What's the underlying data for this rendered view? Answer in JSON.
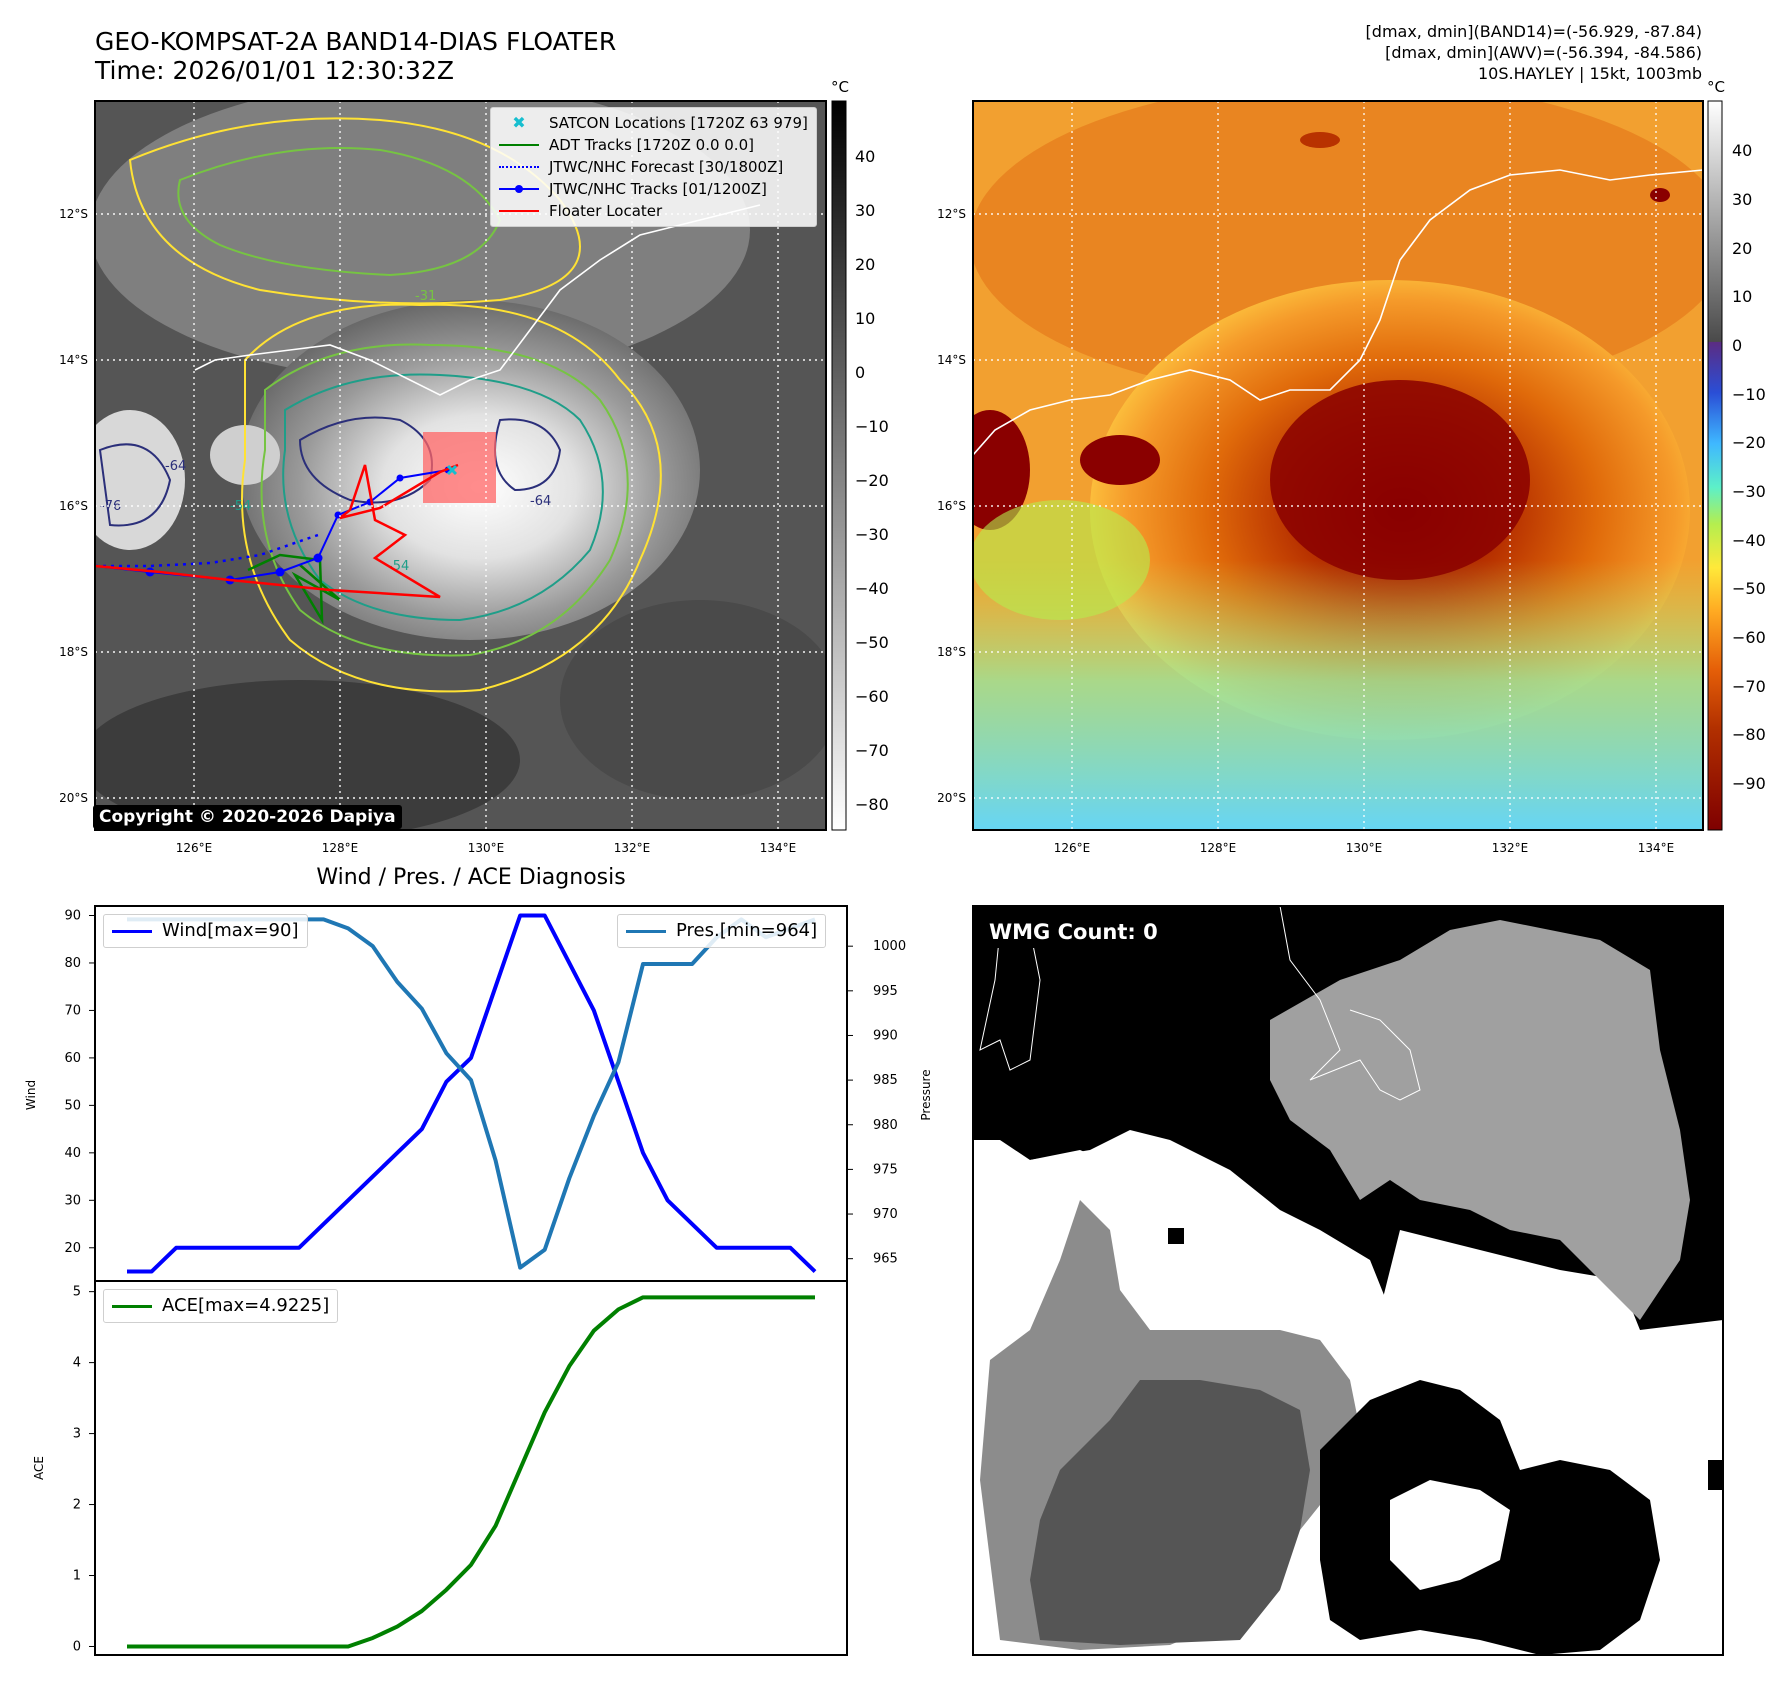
{
  "header": {
    "title_line1": "GEO-KOMPSAT-2A BAND14-DIAS FLOATER",
    "title_line2": "Time: 2026/01/01 12:30:32Z",
    "info_line1": "[dmax, dmin](BAND14)=(-56.929, -87.84)",
    "info_line2": "[dmax, dmin](AWV)=(-56.394, -84.586)",
    "info_line3": "10S.HAYLEY | 15kt, 1003mb"
  },
  "copyright": "Copyright © 2020-2026 Dapiya",
  "map": {
    "lat_labels": [
      "12°S",
      "14°S",
      "16°S",
      "18°S",
      "20°S"
    ],
    "lon_labels": [
      "126°E",
      "128°E",
      "130°E",
      "132°E",
      "134°E"
    ],
    "unit": "°C",
    "ir_colorbar_ticks": [
      "40",
      "30",
      "20",
      "10",
      "0",
      "−10",
      "−20",
      "−30",
      "−40",
      "−50",
      "−60",
      "−70",
      "−80"
    ],
    "color_colorbar_ticks": [
      "40",
      "30",
      "20",
      "10",
      "0",
      "−10",
      "−20",
      "−30",
      "−40",
      "−50",
      "−60",
      "−70",
      "−80",
      "−90"
    ],
    "contour_labels": [
      "-54",
      "-64",
      "-76",
      "-31",
      "-54",
      "-64"
    ],
    "legend": [
      {
        "label": "SATCON Locations [1720Z 63 979]",
        "color": "#17becf",
        "style": "x"
      },
      {
        "label": "ADT Tracks [1720Z 0.0 0.0]",
        "color": "#008000",
        "style": "line"
      },
      {
        "label": "JTWC/NHC Forecast [30/1800Z]",
        "color": "#0000ff",
        "style": "dotted"
      },
      {
        "label": "JTWC/NHC Tracks [01/1200Z]",
        "color": "#0000ff",
        "style": "line-dot"
      },
      {
        "label": "Floater Locater",
        "color": "#ff0000",
        "style": "line"
      }
    ]
  },
  "diagnosis": {
    "title": "Wind / Pres. / ACE Diagnosis",
    "wind_ylabel": "Wind",
    "pres_ylabel": "Pressure",
    "ace_ylabel": "ACE",
    "wind_legend": "Wind[max=90]",
    "pres_legend": "Pres.[min=964]",
    "ace_legend": "ACE[max=4.9225]"
  },
  "wmg": {
    "label": "WMG Count: 0"
  },
  "chart_data": [
    {
      "type": "line",
      "title": "Wind / Pres. / ACE Diagnosis",
      "x": [
        0,
        1,
        2,
        3,
        4,
        5,
        6,
        7,
        8,
        9,
        10,
        11,
        12,
        13,
        14,
        15,
        16,
        17,
        18,
        19,
        20,
        21,
        22,
        23,
        24,
        25,
        26,
        27,
        28
      ],
      "series": [
        {
          "name": "Wind[max=90]",
          "axis": "left",
          "color": "#0000ff",
          "values": [
            15,
            15,
            20,
            20,
            20,
            20,
            20,
            20,
            25,
            30,
            35,
            40,
            45,
            55,
            60,
            75,
            90,
            90,
            80,
            70,
            55,
            40,
            30,
            25,
            20,
            20,
            20,
            20,
            15
          ]
        },
        {
          "name": "Pres.[min=964]",
          "axis": "right",
          "color": "#1f77b4",
          "values": [
            1003,
            1003,
            1003,
            1003,
            1003,
            1003,
            1003,
            1003,
            1003,
            1002,
            1000,
            996,
            993,
            988,
            985,
            976,
            964,
            966,
            974,
            981,
            987,
            998,
            998,
            998,
            1001,
            1003,
            1001,
            1002,
            1003
          ]
        }
      ],
      "ylabel": "Wind",
      "ylim": [
        13,
        92
      ],
      "yticks": [
        20,
        30,
        40,
        50,
        60,
        70,
        80,
        90
      ],
      "ylabel_right": "Pressure",
      "ylim_right": [
        962.5,
        1004.5
      ],
      "yticks_right": [
        965,
        970,
        975,
        980,
        985,
        990,
        995,
        1000
      ]
    },
    {
      "type": "line",
      "x": [
        0,
        1,
        2,
        3,
        4,
        5,
        6,
        7,
        8,
        9,
        10,
        11,
        12,
        13,
        14,
        15,
        16,
        17,
        18,
        19,
        20,
        21,
        22,
        23,
        24,
        25,
        26,
        27,
        28
      ],
      "series": [
        {
          "name": "ACE[max=4.9225]",
          "color": "#008000",
          "values": [
            0,
            0,
            0,
            0,
            0,
            0,
            0,
            0,
            0,
            0,
            0.12,
            0.28,
            0.5,
            0.8,
            1.15,
            1.7,
            2.5,
            3.3,
            3.95,
            4.45,
            4.75,
            4.92,
            4.92,
            4.92,
            4.92,
            4.92,
            4.92,
            4.92,
            4.92
          ]
        }
      ],
      "ylabel": "ACE",
      "ylim": [
        -0.12,
        5.15
      ],
      "yticks": [
        0,
        1,
        2,
        3,
        4,
        5
      ]
    }
  ]
}
